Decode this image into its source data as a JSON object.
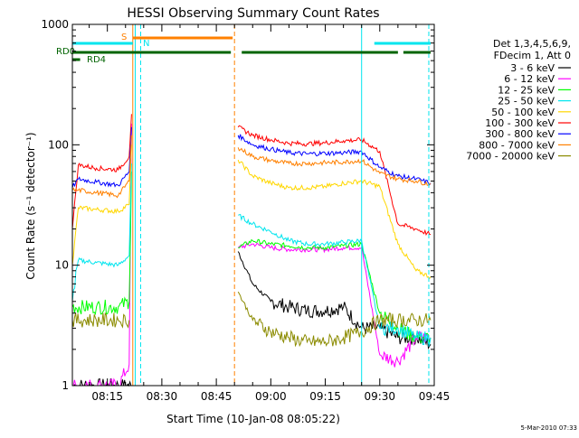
{
  "chart_data": {
    "type": "line",
    "title": "HESSI Observing Summary Count Rates",
    "xlabel": "Start Time (10-Jan-08 08:05:22)",
    "ylabel": "Count Rate (s⁻¹ detector⁻¹)",
    "yscale": "log",
    "ylim": [
      1,
      1000
    ],
    "xlim": [
      "08:05:22",
      "09:45:00"
    ],
    "x_ticks": [
      "08:15",
      "08:30",
      "08:45",
      "09:00",
      "09:15",
      "09:30",
      "09:45"
    ],
    "y_ticks": [
      "1",
      "10",
      "100",
      "1000"
    ],
    "legend_header": [
      "Det 1,3,4,5,6,9,",
      "FDecim 1, Att 0"
    ],
    "legend_position": "right",
    "timestamp": "5-Mar-2010 07:33",
    "flag_bars": [
      {
        "label": "S",
        "color": "#ff8000",
        "segments": [
          [
            "08:22:00",
            "08:49:30"
          ]
        ]
      },
      {
        "label": "N",
        "color": "#00e5ee",
        "segments": [
          [
            "08:05:22",
            "08:22:00"
          ],
          [
            "09:28:30",
            "09:44:00"
          ]
        ]
      },
      {
        "label": "RD0",
        "color": "#006400",
        "segments": [
          [
            "08:05:22",
            "08:49:00"
          ],
          [
            "08:52:00",
            "09:35:00"
          ],
          [
            "09:36:30",
            "09:44:00"
          ]
        ]
      },
      {
        "label": "RD4",
        "color": "#006400",
        "segments": [
          [
            "08:05:22",
            "08:07:30"
          ]
        ]
      }
    ],
    "vertical_lines": [
      {
        "time": "08:22:00",
        "color": "#ff8000",
        "dashed": false
      },
      {
        "time": "08:22:40",
        "color": "#00e5ee",
        "dashed": false
      },
      {
        "time": "08:24:10",
        "color": "#00e5ee",
        "dashed": true
      },
      {
        "time": "08:50:00",
        "color": "#ff8000",
        "dashed": true
      },
      {
        "time": "09:25:00",
        "color": "#00e5ee",
        "dashed": false
      },
      {
        "time": "09:43:30",
        "color": "#00e5ee",
        "dashed": true
      }
    ],
    "series": [
      {
        "name": "3 - 6 keV",
        "color": "#000000",
        "x": [
          "08:05:22",
          "08:12:00",
          "08:18:00",
          "08:21:30",
          "08:22:00",
          "08:50:00",
          "08:51:00",
          "08:55:00",
          "09:00:00",
          "09:05:00",
          "09:10:00",
          "09:15:00",
          "09:20:00",
          "09:25:00",
          "09:30:00",
          "09:35:00",
          "09:40:00",
          "09:44:00"
        ],
        "y": [
          1.0,
          1.0,
          1.0,
          1.0,
          null,
          null,
          13,
          7,
          5,
          4.5,
          4.2,
          4.2,
          4.5,
          3,
          3,
          2.5,
          2.5,
          2.2
        ]
      },
      {
        "name": "6 - 12 keV",
        "color": "#ff00ff",
        "x": [
          "08:05:22",
          "08:12:00",
          "08:18:00",
          "08:21:00",
          "08:21:40",
          "08:22:00",
          "08:50:00",
          "08:51:00",
          "08:55:00",
          "09:00:00",
          "09:05:00",
          "09:10:00",
          "09:15:00",
          "09:20:00",
          "09:25:00",
          "09:30:00",
          "09:35:00",
          "09:40:00",
          "09:44:00"
        ],
        "y": [
          1.0,
          1.0,
          1.0,
          1.5,
          150,
          null,
          null,
          14,
          15,
          14,
          13.5,
          13.5,
          13.5,
          14,
          14,
          1.8,
          1.6,
          2.5,
          2.5
        ]
      },
      {
        "name": "12 - 25 keV",
        "color": "#00ff00",
        "x": [
          "08:05:22",
          "08:12:00",
          "08:18:00",
          "08:21:00",
          "08:21:40",
          "08:22:00",
          "08:50:00",
          "08:51:00",
          "08:55:00",
          "09:00:00",
          "09:05:00",
          "09:10:00",
          "09:15:00",
          "09:20:00",
          "09:25:00",
          "09:30:00",
          "09:35:00",
          "09:40:00",
          "09:44:00"
        ],
        "y": [
          4.5,
          4.5,
          4.5,
          5,
          60,
          null,
          null,
          14,
          16,
          15,
          14.5,
          14,
          14,
          14.5,
          15,
          4,
          3,
          2.5,
          2.5
        ]
      },
      {
        "name": "25 - 50 keV",
        "color": "#00e5ee",
        "x": [
          "08:05:22",
          "08:07:00",
          "08:12:00",
          "08:18:00",
          "08:21:00",
          "08:21:40",
          "08:22:00",
          "08:50:00",
          "08:51:00",
          "08:55:00",
          "09:00:00",
          "09:05:00",
          "09:10:00",
          "09:15:00",
          "09:20:00",
          "09:25:00",
          "09:30:00",
          "09:35:00",
          "09:40:00",
          "09:44:00"
        ],
        "y": [
          5,
          11,
          10.5,
          10,
          12,
          70,
          null,
          null,
          26,
          22,
          19,
          16,
          15,
          15,
          15.5,
          16,
          3,
          3,
          2.5,
          2.5
        ]
      },
      {
        "name": "50 - 100 keV",
        "color": "#ffd700",
        "x": [
          "08:05:22",
          "08:07:00",
          "08:12:00",
          "08:18:00",
          "08:21:00",
          "08:21:40",
          "08:22:00",
          "08:50:00",
          "08:51:00",
          "08:55:00",
          "09:00:00",
          "09:05:00",
          "09:10:00",
          "09:15:00",
          "09:20:00",
          "09:25:00",
          "09:30:00",
          "09:35:00",
          "09:40:00",
          "09:44:00"
        ],
        "y": [
          10,
          30,
          29,
          28,
          32,
          100,
          null,
          null,
          75,
          55,
          48,
          44,
          44,
          45,
          48,
          50,
          45,
          15,
          9,
          8
        ]
      },
      {
        "name": "100 - 300 keV",
        "color": "#ff0000",
        "x": [
          "08:05:22",
          "08:07:00",
          "08:12:00",
          "08:18:00",
          "08:21:00",
          "08:21:40",
          "08:22:00",
          "08:50:00",
          "08:51:00",
          "08:55:00",
          "09:00:00",
          "09:05:00",
          "09:10:00",
          "09:15:00",
          "09:20:00",
          "09:25:00",
          "09:30:00",
          "09:35:00",
          "09:40:00",
          "09:44:00"
        ],
        "y": [
          20,
          68,
          64,
          62,
          80,
          180,
          null,
          null,
          140,
          120,
          110,
          103,
          102,
          104,
          108,
          110,
          88,
          22,
          20,
          18
        ]
      },
      {
        "name": "300 - 800 keV",
        "color": "#0000ff",
        "x": [
          "08:05:22",
          "08:07:00",
          "08:12:00",
          "08:18:00",
          "08:21:00",
          "08:21:40",
          "08:22:00",
          "08:50:00",
          "08:51:00",
          "08:55:00",
          "09:00:00",
          "09:05:00",
          "09:10:00",
          "09:15:00",
          "09:20:00",
          "09:25:00",
          "09:30:00",
          "09:35:00",
          "09:40:00",
          "09:44:00"
        ],
        "y": [
          44,
          52,
          49,
          46,
          60,
          140,
          null,
          null,
          120,
          100,
          92,
          86,
          84,
          85,
          86,
          88,
          65,
          55,
          52,
          48
        ]
      },
      {
        "name": "800 - 7000 keV",
        "color": "#ff8000",
        "x": [
          "08:05:22",
          "08:07:00",
          "08:12:00",
          "08:18:00",
          "08:21:00",
          "08:21:40",
          "08:22:00",
          "08:50:00",
          "08:51:00",
          "08:55:00",
          "09:00:00",
          "09:05:00",
          "09:10:00",
          "09:15:00",
          "09:20:00",
          "09:25:00",
          "09:30:00",
          "09:35:00",
          "09:40:00",
          "09:44:00"
        ],
        "y": [
          42,
          42,
          40,
          38,
          50,
          120,
          null,
          null,
          95,
          80,
          74,
          70,
          70,
          71,
          72,
          74,
          58,
          52,
          50,
          47
        ]
      },
      {
        "name": "7000 - 20000 keV",
        "color": "#8b8b00",
        "x": [
          "08:05:22",
          "08:12:00",
          "08:18:00",
          "08:21:00",
          "08:22:00",
          "08:50:00",
          "08:51:00",
          "08:55:00",
          "09:00:00",
          "09:05:00",
          "09:10:00",
          "09:15:00",
          "09:20:00",
          "09:25:00",
          "09:30:00",
          "09:35:00",
          "09:40:00",
          "09:44:00"
        ],
        "y": [
          3.5,
          3.5,
          3.5,
          3.5,
          null,
          null,
          6,
          3.5,
          2.8,
          2.5,
          2.3,
          2.3,
          2.5,
          2.8,
          3.5,
          3.5,
          3.5,
          3.5
        ]
      }
    ]
  }
}
